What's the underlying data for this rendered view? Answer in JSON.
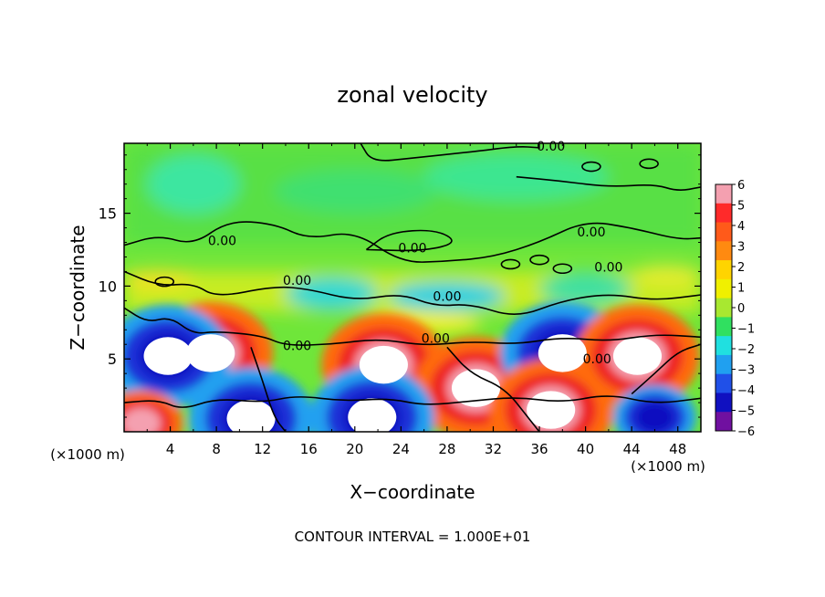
{
  "chart_data": {
    "type": "heatmap",
    "title": "zonal velocity",
    "xlabel": "X−coordinate",
    "ylabel": "Z−coordinate",
    "x_unit": "(×1000 m)",
    "y_unit": "(×1000 m)",
    "footer": "CONTOUR INTERVAL = 1.000E+01",
    "xlim": [
      0,
      50
    ],
    "ylim": [
      0,
      19.8
    ],
    "x_ticks": [
      4,
      8,
      12,
      16,
      20,
      24,
      28,
      32,
      36,
      40,
      44,
      48
    ],
    "y_ticks": [
      5,
      10,
      15
    ],
    "colorbar": {
      "ticks": [
        6,
        5,
        4,
        3,
        2,
        1,
        0,
        -1,
        -2,
        -3,
        -4,
        -5,
        -6
      ],
      "tick_labels": [
        "6",
        "5",
        "4",
        "3",
        "2",
        "1",
        "0",
        "−1",
        "−2",
        "−3",
        "−4",
        "−5",
        "−6"
      ],
      "colors": [
        "#f4a0b0",
        "#ff2a2a",
        "#ff5a1a",
        "#ff8a10",
        "#ffd400",
        "#f0f000",
        "#a8e830",
        "#30e060",
        "#20e0e0",
        "#20a0f0",
        "#2050e8",
        "#1010c0",
        "#7010a0"
      ]
    },
    "contour_label": "0.00",
    "contour_label_positions": [
      [
        8.5,
        12.8
      ],
      [
        25,
        12.3
      ],
      [
        15,
        10.1
      ],
      [
        28,
        9
      ],
      [
        27,
        6.1
      ],
      [
        15,
        5.6
      ],
      [
        37,
        19.3
      ],
      [
        42,
        11
      ],
      [
        40.5,
        13.4
      ],
      [
        41,
        4.7
      ]
    ],
    "features": [
      {
        "kind": "max",
        "x": 7.5,
        "z": 5.4,
        "value": 6
      },
      {
        "kind": "min",
        "x": 3.8,
        "z": 5.2,
        "value": -6
      },
      {
        "kind": "max",
        "x": 22.5,
        "z": 4.6,
        "value": 6
      },
      {
        "kind": "max",
        "x": 30.5,
        "z": 3.0,
        "value": 6
      },
      {
        "kind": "min",
        "x": 38.0,
        "z": 5.4,
        "value": -6
      },
      {
        "kind": "max",
        "x": 44.5,
        "z": 5.2,
        "value": 6
      },
      {
        "kind": "min",
        "x": 21.5,
        "z": 1.0,
        "value": -6
      },
      {
        "kind": "min",
        "x": 11.0,
        "z": 0.9,
        "value": -6
      },
      {
        "kind": "max",
        "x": 37.0,
        "z": 1.5,
        "value": 6
      },
      {
        "kind": "min",
        "x": 46.0,
        "z": 1.0,
        "value": -5
      },
      {
        "kind": "max",
        "x": 1.5,
        "z": 0.6,
        "value": 5
      }
    ]
  }
}
